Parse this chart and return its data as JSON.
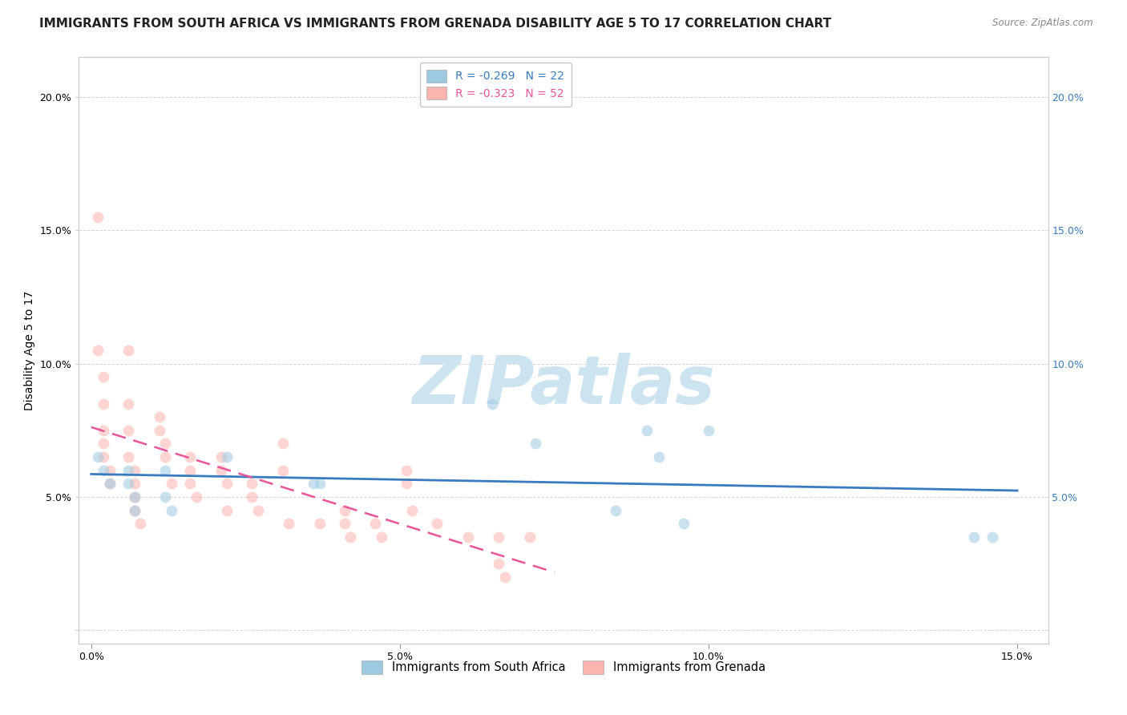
{
  "title": "IMMIGRANTS FROM SOUTH AFRICA VS IMMIGRANTS FROM GRENADA DISABILITY AGE 5 TO 17 CORRELATION CHART",
  "source": "Source: ZipAtlas.com",
  "xlabel": "",
  "ylabel": "Disability Age 5 to 17",
  "xlim": [
    -0.002,
    0.155
  ],
  "ylim": [
    -0.005,
    0.215
  ],
  "xtick_labels": [
    "0.0%",
    "5.0%",
    "10.0%",
    "15.0%"
  ],
  "xtick_vals": [
    0.0,
    0.05,
    0.1,
    0.15
  ],
  "ytick_vals": [
    0.0,
    0.05,
    0.1,
    0.15,
    0.2
  ],
  "ytick_labels_left": [
    "",
    "5.0%",
    "10.0%",
    "15.0%",
    "20.0%"
  ],
  "ytick_labels_right": [
    "",
    "5.0%",
    "10.0%",
    "15.0%",
    "20.0%"
  ],
  "legend_entries": [
    {
      "label": "R = -0.269   N = 22",
      "color": "#9ecae1"
    },
    {
      "label": "R = -0.323   N = 52",
      "color": "#fbb4ae"
    }
  ],
  "legend_bottom": [
    {
      "label": "Immigrants from South Africa",
      "color": "#9ecae1"
    },
    {
      "label": "Immigrants from Grenada",
      "color": "#fbb4ae"
    }
  ],
  "watermark": "ZIPatlas",
  "south_africa_x": [
    0.001,
    0.002,
    0.003,
    0.006,
    0.006,
    0.007,
    0.007,
    0.012,
    0.012,
    0.013,
    0.022,
    0.036,
    0.037,
    0.065,
    0.072,
    0.085,
    0.09,
    0.092,
    0.096,
    0.1,
    0.143,
    0.146
  ],
  "south_africa_y": [
    0.065,
    0.06,
    0.055,
    0.06,
    0.055,
    0.05,
    0.045,
    0.06,
    0.05,
    0.045,
    0.065,
    0.055,
    0.055,
    0.085,
    0.07,
    0.045,
    0.075,
    0.065,
    0.04,
    0.075,
    0.035,
    0.035
  ],
  "grenada_x": [
    0.001,
    0.001,
    0.002,
    0.002,
    0.002,
    0.002,
    0.002,
    0.003,
    0.003,
    0.006,
    0.006,
    0.006,
    0.006,
    0.007,
    0.007,
    0.007,
    0.007,
    0.008,
    0.011,
    0.011,
    0.012,
    0.012,
    0.013,
    0.016,
    0.016,
    0.016,
    0.017,
    0.021,
    0.021,
    0.022,
    0.022,
    0.026,
    0.026,
    0.027,
    0.031,
    0.031,
    0.032,
    0.037,
    0.041,
    0.041,
    0.042,
    0.046,
    0.047,
    0.051,
    0.051,
    0.052,
    0.056,
    0.061,
    0.066,
    0.066,
    0.067,
    0.071
  ],
  "grenada_y": [
    0.155,
    0.105,
    0.095,
    0.085,
    0.075,
    0.07,
    0.065,
    0.06,
    0.055,
    0.105,
    0.085,
    0.075,
    0.065,
    0.06,
    0.055,
    0.05,
    0.045,
    0.04,
    0.08,
    0.075,
    0.07,
    0.065,
    0.055,
    0.065,
    0.06,
    0.055,
    0.05,
    0.065,
    0.06,
    0.055,
    0.045,
    0.055,
    0.05,
    0.045,
    0.07,
    0.06,
    0.04,
    0.04,
    0.045,
    0.04,
    0.035,
    0.04,
    0.035,
    0.06,
    0.055,
    0.045,
    0.04,
    0.035,
    0.035,
    0.025,
    0.02,
    0.035
  ],
  "south_africa_line_color": "#3a7bbf",
  "grenada_line_color": "#e8559a",
  "dot_size": 100,
  "dot_alpha": 0.55,
  "south_africa_dot_color": "#9ecae1",
  "grenada_dot_color": "#fbb4ae",
  "background_color": "#ffffff",
  "grid_color": "#cccccc",
  "title_fontsize": 11,
  "axis_label_fontsize": 10,
  "tick_fontsize": 9,
  "watermark_color": "#cce4f0",
  "watermark_fontsize": 60
}
